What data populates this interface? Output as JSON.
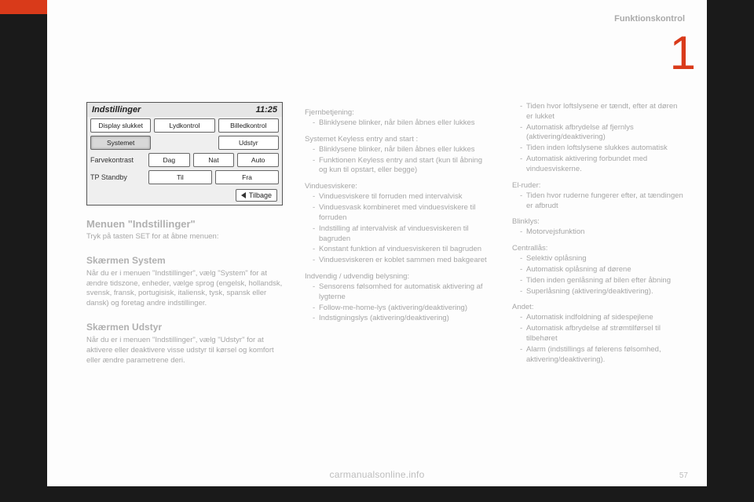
{
  "header": {
    "section": "Funktionskontrol"
  },
  "chapter_number": "1",
  "panel": {
    "title": "Indstillinger",
    "clock": "11:25",
    "rows": [
      {
        "label": "",
        "buttons": [
          {
            "text": "Display slukket",
            "sel": false
          },
          {
            "text": "Lydkontrol",
            "sel": false
          },
          {
            "text": "Billedkontrol",
            "sel": false
          }
        ]
      },
      {
        "label": "",
        "buttons": [
          {
            "text": "Systemet",
            "sel": true
          },
          {
            "text": "",
            "sel": false,
            "blank": true
          },
          {
            "text": "Udstyr",
            "sel": false
          }
        ]
      },
      {
        "label": "Farvekontrast",
        "buttons": [
          {
            "text": "Dag",
            "sel": false
          },
          {
            "text": "Nat",
            "sel": false
          },
          {
            "text": "Auto",
            "sel": false
          }
        ]
      },
      {
        "label": "TP Standby",
        "buttons": [
          {
            "text": "Til",
            "sel": false
          },
          {
            "text": "Fra",
            "sel": false
          }
        ]
      }
    ],
    "back": "Tilbage"
  },
  "col1": {
    "menu_title": "Menuen \"Indstillinger\"",
    "menu_body": "Tryk på tasten SET for at åbne menuen:",
    "sys_title": "Skærmen System",
    "sys_body": "Når du er i menuen \"Indstillinger\", vælg \"System\" for at ændre tidszone, enheder, vælge sprog (engelsk, hollandsk, svensk, fransk, portugisisk, italiensk, tysk, spansk eller dansk) og foretag andre indstillinger.",
    "equip_title": "Skærmen Udstyr",
    "equip_body": "Når du er i menuen \"Indstillinger\", vælg \"Udstyr\" for at aktivere eller deaktivere visse udstyr til kørsel og komfort eller ændre parametrene deri."
  },
  "col2": {
    "g1_label": "Fjernbetjening:",
    "g1_items": [
      "Blinklysene blinker, når bilen åbnes eller lukkes"
    ],
    "g2_label": "Systemet Keyless entry and start :",
    "g2_items": [
      "Blinklysene blinker, når bilen åbnes eller lukkes",
      "Funktionen Keyless entry and start (kun til åbning og kun til opstart, eller begge)"
    ],
    "g3_label": "Vinduesviskere:",
    "g3_items": [
      "Vinduesviskere til forruden med intervalvisk",
      "Vinduesvask kombineret med vinduesviskere til forruden",
      "Indstilling af intervalvisk af vinduesviskeren til bagruden",
      "Konstant funktion af vinduesviskeren til bagruden",
      "Vinduesviskeren er koblet sammen med bakgearet"
    ],
    "g4_label": "Indvendig / udvendig belysning:",
    "g4_items": [
      "Sensorens følsomhed for automatisk aktivering af lygterne",
      "Follow-me-home-lys (aktivering/deaktivering)",
      "Indstigningslys (aktivering/deaktivering)"
    ]
  },
  "col3": {
    "g0_items": [
      "Tiden hvor loftslysene er tændt, efter at døren er lukket",
      "Automatisk afbrydelse af fjernlys (aktivering/deaktivering)",
      "Tiden inden loftslysene slukkes automatisk",
      "Automatisk aktivering forbundet med vinduesviskerne."
    ],
    "g1_label": "El-ruder:",
    "g1_items": [
      "Tiden hvor ruderne fungerer efter, at tændingen er afbrudt"
    ],
    "g2_label": "Blinklys:",
    "g2_items": [
      "Motorvejsfunktion"
    ],
    "g3_label": "Centrallås:",
    "g3_items": [
      "Selektiv oplåsning",
      "Automatisk oplåsning af dørene",
      "Tiden inden genlåsning af bilen efter åbning",
      "Superlåsning (aktivering/deaktivering)."
    ],
    "g4_label": "Andet:",
    "g4_items": [
      "Automatisk indfoldning af sidespejlene",
      "Automatisk afbrydelse af strømtilførsel til tilbehøret",
      "Alarm (indstillings af følerens følsomhed, aktivering/deaktivering)."
    ]
  },
  "footer": {
    "site": "carmanualsonline.info",
    "page": "57"
  }
}
